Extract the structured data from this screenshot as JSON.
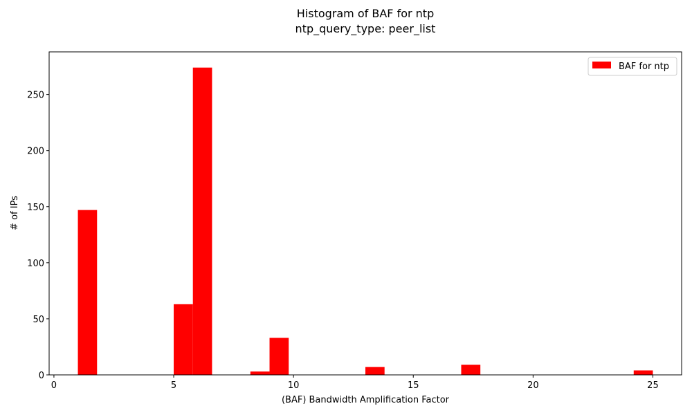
{
  "chart_data": {
    "type": "bar",
    "title": "Histogram of BAF for ntp",
    "subtitle": "ntp_query_type: peer_list",
    "xlabel": "(BAF) Bandwidth Amplification Factor",
    "ylabel": "# of IPs",
    "xlim": [
      -0.2,
      26.2
    ],
    "ylim": [
      0,
      288
    ],
    "xticks": [
      0,
      5,
      10,
      15,
      20,
      25
    ],
    "yticks": [
      0,
      50,
      100,
      150,
      200,
      250
    ],
    "grid": false,
    "legend_position": "top-right",
    "color": "#ff0000",
    "series": [
      {
        "name": "BAF for ntp",
        "bins": [
          {
            "x0": 1.0,
            "x1": 1.8,
            "value": 147
          },
          {
            "x0": 5.0,
            "x1": 5.8,
            "value": 63
          },
          {
            "x0": 5.8,
            "x1": 6.6,
            "value": 274
          },
          {
            "x0": 8.2,
            "x1": 9.0,
            "value": 3
          },
          {
            "x0": 9.0,
            "x1": 9.8,
            "value": 33
          },
          {
            "x0": 13.0,
            "x1": 13.8,
            "value": 7
          },
          {
            "x0": 17.0,
            "x1": 17.8,
            "value": 9
          },
          {
            "x0": 24.2,
            "x1": 25.0,
            "value": 4
          }
        ]
      }
    ]
  }
}
